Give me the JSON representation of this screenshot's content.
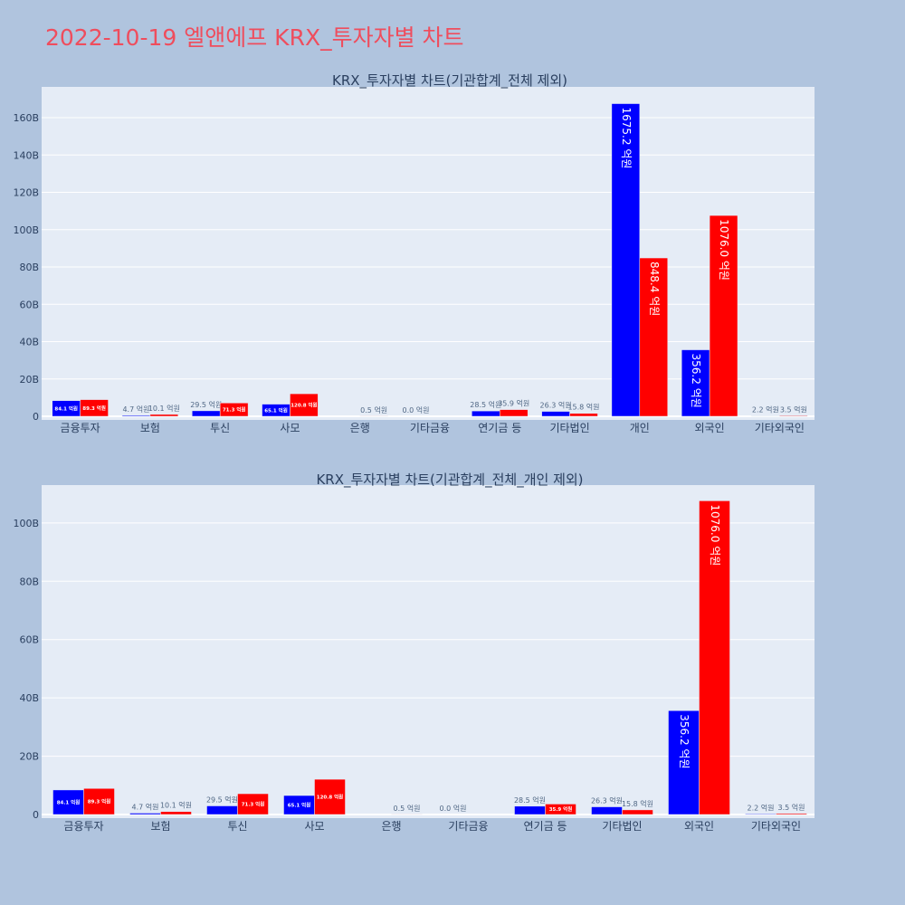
{
  "page": {
    "title": "2022-10-19 엘앤에프 KRX_투자자별 차트"
  },
  "colors": {
    "background": "#b0c4de",
    "plot_bg": "#e5ecf6",
    "buy": "#0000ff",
    "sell": "#ff0000",
    "title": "#ef4d5d"
  },
  "chart_data": [
    {
      "type": "bar",
      "title": "KRX_투자자별 차트(기관합계_전체 제외)",
      "categories": [
        "금융투자",
        "보험",
        "투신",
        "사모",
        "은행",
        "기타금융",
        "연기금 등",
        "기타법인",
        "개인",
        "외국인",
        "기타외국인"
      ],
      "series": [
        {
          "color": "#0000ff",
          "values": [
            8.41,
            0.47,
            2.95,
            6.51,
            0.0,
            0.0,
            2.85,
            2.63,
            167.52,
            35.62,
            0.22
          ],
          "labels": [
            "84.1 억원",
            "4.7 억원",
            "29.5 억원",
            "65.1 억원",
            "",
            "0.0 억원",
            "28.5 억원",
            "26.3 억원",
            "1675.2 억원",
            "356.2 억원",
            "2.2 억원"
          ]
        },
        {
          "color": "#ff0000",
          "values": [
            8.93,
            1.01,
            7.13,
            12.08,
            0.05,
            0.0,
            3.59,
            1.58,
            84.84,
            107.6,
            0.35
          ],
          "labels": [
            "89.3 억원",
            "10.1 억원",
            "71.3 억원",
            "120.8 억원",
            "0.5 억원",
            "",
            "35.9 억원",
            "15.8 억원",
            "848.4 억원",
            "1076.0 억원",
            "3.5 억원"
          ]
        }
      ],
      "yticks": [
        0,
        20,
        40,
        60,
        80,
        100,
        120,
        140,
        160
      ],
      "ytick_labels": [
        "0",
        "20B",
        "40B",
        "60B",
        "80B",
        "100B",
        "120B",
        "140B",
        "160B"
      ],
      "ylim": [
        0,
        176.5
      ],
      "grid": true
    },
    {
      "type": "bar",
      "title": "KRX_투자자별 차트(기관합계_전체_개인 제외)",
      "categories": [
        "금융투자",
        "보험",
        "투신",
        "사모",
        "은행",
        "기타금융",
        "연기금 등",
        "기타법인",
        "외국인",
        "기타외국인"
      ],
      "series": [
        {
          "color": "#0000ff",
          "values": [
            8.41,
            0.47,
            2.95,
            6.51,
            0.0,
            0.0,
            2.85,
            2.63,
            35.62,
            0.22
          ],
          "labels": [
            "84.1 억원",
            "4.7 억원",
            "29.5 억원",
            "65.1 억원",
            "",
            "0.0 억원",
            "28.5 억원",
            "26.3 억원",
            "356.2 억원",
            "2.2 억원"
          ]
        },
        {
          "color": "#ff0000",
          "values": [
            8.93,
            1.01,
            7.13,
            12.08,
            0.05,
            0.0,
            3.59,
            1.58,
            107.6,
            0.35
          ],
          "labels": [
            "89.3 억원",
            "10.1 억원",
            "71.3 억원",
            "120.8 억원",
            "0.5 억원",
            "",
            "35.9 억원",
            "15.8 억원",
            "1076.0 억원",
            "3.5 억원"
          ]
        }
      ],
      "yticks": [
        0,
        20,
        40,
        60,
        80,
        100
      ],
      "ytick_labels": [
        "0",
        "20B",
        "40B",
        "60B",
        "80B",
        "100B"
      ],
      "ylim": [
        0,
        113
      ],
      "grid": true
    }
  ]
}
